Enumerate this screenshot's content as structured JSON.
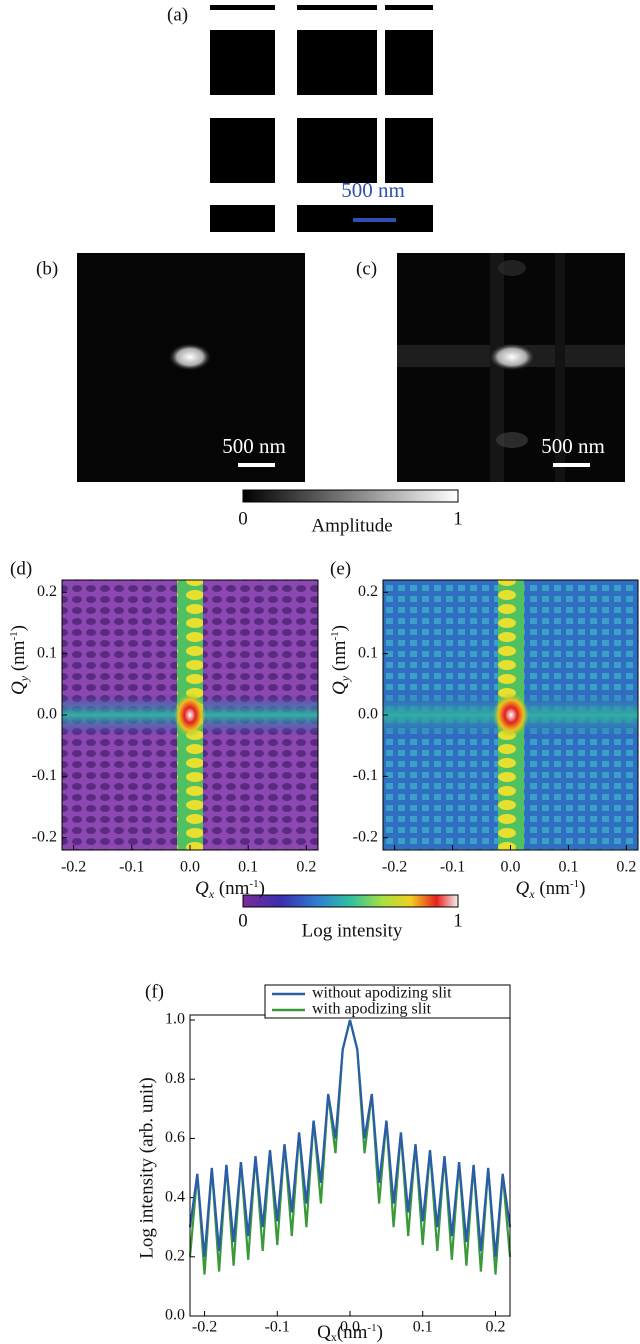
{
  "panels": {
    "a": {
      "label": "(a)",
      "scale_bar": "500 nm"
    },
    "b": {
      "label": "(b)",
      "scale_bar": "500 nm"
    },
    "c": {
      "label": "(c)",
      "scale_bar": "500 nm"
    },
    "d": {
      "label": "(d)"
    },
    "e": {
      "label": "(e)"
    }
  },
  "amplitude_colorbar": {
    "label": "Amplitude",
    "ticks": [
      0,
      1
    ]
  },
  "intensity_colorbar": {
    "label": "Log intensity",
    "ticks": [
      0,
      1
    ]
  },
  "maps": {
    "xlim": [
      -0.22,
      0.22
    ],
    "ylim": [
      -0.22,
      0.22
    ],
    "xticks": [
      -0.2,
      -0.1,
      {
        "value": 0,
        "label": "0.0"
      },
      0.1,
      0.2
    ],
    "yticks": [
      -0.2,
      -0.1,
      {
        "value": 0,
        "label": "0.0"
      },
      0.1,
      0.2
    ],
    "xlabel": [
      "Q",
      "x",
      " (nm",
      "-1",
      ")"
    ],
    "ylabel": [
      "Q",
      "y",
      " (nm",
      "-1",
      ")"
    ]
  },
  "chart_data": {
    "type": "line",
    "title": "(f)",
    "x": [
      -0.22,
      -0.21,
      -0.2,
      -0.19,
      -0.18,
      -0.17,
      -0.16,
      -0.15,
      -0.14,
      -0.13,
      -0.12,
      -0.11,
      -0.1,
      -0.09,
      -0.08,
      -0.07,
      -0.06,
      -0.05,
      -0.04,
      -0.03,
      -0.02,
      -0.01,
      0,
      0.01,
      0.02,
      0.03,
      0.04,
      0.05,
      0.06,
      0.07,
      0.08,
      0.09,
      0.1,
      0.11,
      0.12,
      0.13,
      0.14,
      0.15,
      0.16,
      0.17,
      0.18,
      0.19,
      0.2,
      0.21,
      0.22
    ],
    "series": [
      {
        "name": "with apodizing slit",
        "color": "#3a9a3a",
        "values": [
          0.2,
          0.48,
          0.14,
          0.5,
          0.15,
          0.51,
          0.17,
          0.52,
          0.19,
          0.54,
          0.22,
          0.56,
          0.24,
          0.58,
          0.27,
          0.62,
          0.3,
          0.66,
          0.38,
          0.75,
          0.55,
          0.9,
          1.0,
          0.9,
          0.55,
          0.75,
          0.38,
          0.66,
          0.3,
          0.62,
          0.27,
          0.58,
          0.24,
          0.56,
          0.22,
          0.54,
          0.19,
          0.52,
          0.17,
          0.51,
          0.15,
          0.5,
          0.14,
          0.48,
          0.2
        ]
      },
      {
        "name": "without apodizing slit",
        "color": "#2a5caa",
        "values": [
          0.3,
          0.48,
          0.2,
          0.5,
          0.22,
          0.51,
          0.25,
          0.52,
          0.27,
          0.54,
          0.3,
          0.56,
          0.32,
          0.58,
          0.35,
          0.62,
          0.38,
          0.66,
          0.45,
          0.75,
          0.6,
          0.9,
          1.0,
          0.9,
          0.6,
          0.75,
          0.45,
          0.66,
          0.38,
          0.62,
          0.35,
          0.58,
          0.32,
          0.56,
          0.3,
          0.54,
          0.27,
          0.52,
          0.25,
          0.51,
          0.22,
          0.5,
          0.2,
          0.48,
          0.3
        ]
      }
    ],
    "xlim": [
      -0.22,
      0.22
    ],
    "ylim": [
      0,
      1
    ],
    "xticks": [
      -0.2,
      -0.1,
      {
        "value": 0,
        "label": "0.0"
      },
      0.1,
      0.2
    ],
    "yticks": [
      {
        "value": 0,
        "label": "0.0"
      },
      0.2,
      0.4,
      0.6,
      0.8,
      {
        "value": 1,
        "label": "1.0"
      }
    ],
    "xlabel": [
      "Q",
      "x",
      "(nm",
      "-1",
      ")"
    ],
    "ylabel": "Log intensity (arb. unit)"
  }
}
